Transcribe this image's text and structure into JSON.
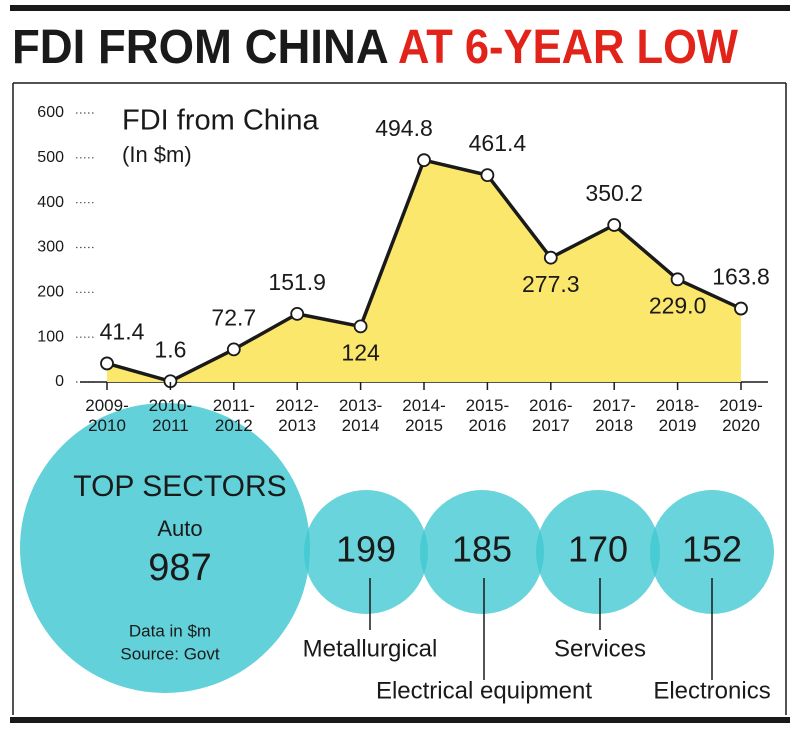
{
  "header": {
    "title_black": "FDI FROM CHINA",
    "title_red": "AT 6-YEAR LOW"
  },
  "chart_data": {
    "type": "area",
    "title": "FDI from China",
    "subtitle": "(In $m)",
    "categories": [
      "2009-2010",
      "2010-2011",
      "2011-2012",
      "2012-2013",
      "2013-2014",
      "2014-2015",
      "2015-2016",
      "2016-2017",
      "2017-2018",
      "2018-2019",
      "2019-2020"
    ],
    "values": [
      41.4,
      1.6,
      72.7,
      151.9,
      124,
      494.8,
      461.4,
      277.3,
      350.2,
      229.0,
      163.8
    ],
    "value_labels": [
      "41.4",
      "1.6",
      "72.7",
      "151.9",
      "124",
      "494.8",
      "461.4",
      "277.3",
      "350.2",
      "229.0",
      "163.8"
    ],
    "color": "#fbe76c",
    "line_color": "#1a1a1a",
    "ylim": [
      0,
      600
    ],
    "yticks": [
      0,
      100,
      200,
      300,
      400,
      500,
      600
    ],
    "grid": true
  },
  "sectors": {
    "title": "TOP SECTORS",
    "top_name": "Auto",
    "top_value": "987",
    "note": "Data in $m",
    "source": "Source: Govt",
    "items": [
      {
        "name": "Metallurgical",
        "value": "199"
      },
      {
        "name": "Electrical equipment",
        "value": "185"
      },
      {
        "name": "Services",
        "value": "170"
      },
      {
        "name": "Electronics",
        "value": "152"
      }
    ]
  }
}
